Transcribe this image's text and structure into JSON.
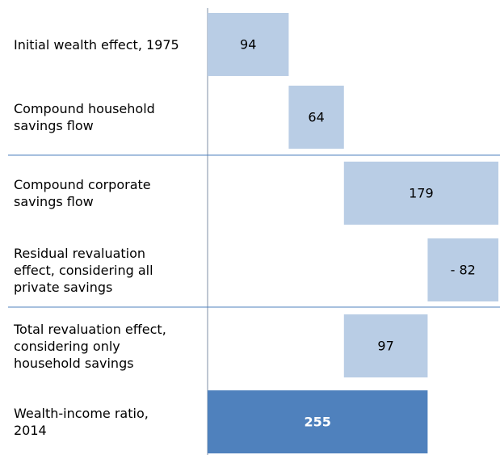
{
  "chart_data": {
    "type": "waterfall",
    "categories": [
      "Initial wealth effect, 1975",
      "Compound household savings flow",
      "Compound corporate savings flow",
      "Residual revaluation effect, considering all private savings",
      "Total revaluation effect, considering only household savings",
      "Wealth-income ratio, 2014"
    ],
    "values": [
      94,
      64,
      179,
      -82,
      97,
      255
    ],
    "value_labels": [
      "94",
      "64",
      "179",
      "- 82",
      "97",
      "255"
    ],
    "bar_kinds": [
      "delta",
      "delta",
      "delta",
      "delta",
      "subtotal",
      "total"
    ],
    "color": "#b9cde5",
    "total_color": "#4f81bd"
  }
}
